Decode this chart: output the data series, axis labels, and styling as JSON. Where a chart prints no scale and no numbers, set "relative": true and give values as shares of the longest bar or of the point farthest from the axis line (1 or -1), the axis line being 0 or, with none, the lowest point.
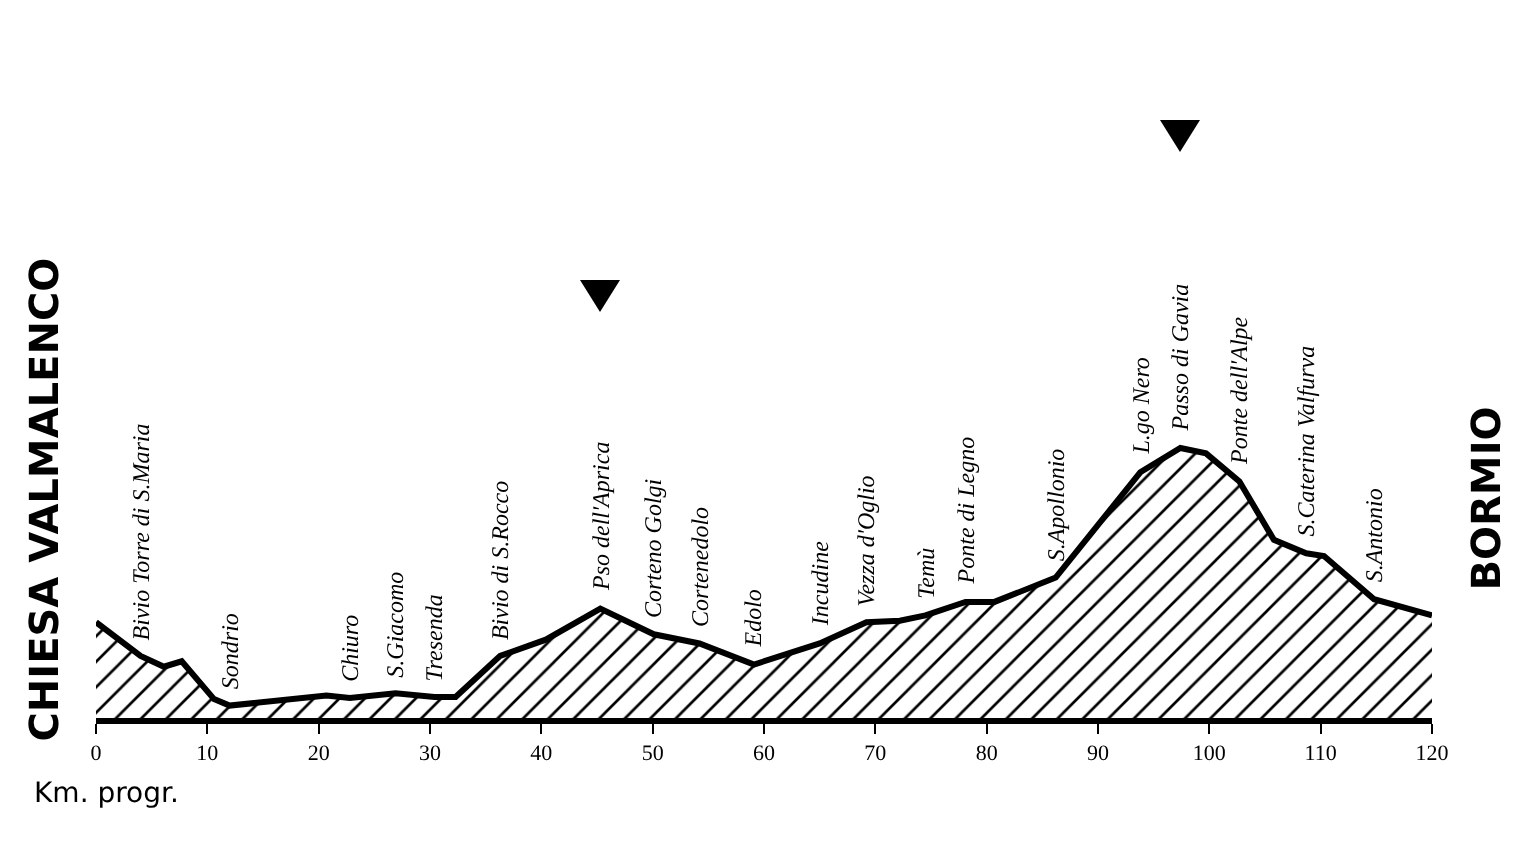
{
  "chart_data": {
    "type": "area",
    "relative": true,
    "xlabel": "Km. progr.",
    "x": [
      0,
      4.0,
      6.1,
      7.7,
      10.6,
      12.0,
      20.7,
      22.8,
      26.9,
      30.4,
      32.3,
      36.3,
      40.4,
      45.3,
      50.1,
      54.2,
      59.1,
      65.0,
      69.2,
      72.2,
      74.5,
      78.1,
      80.7,
      86.2,
      93.8,
      97.4,
      99.7,
      102.7,
      105.8,
      108.7,
      110.3,
      114.8,
      120
    ],
    "series": [
      {
        "color": "#000000",
        "values": [
          0.355,
          0.23,
          0.19,
          0.21,
          0.07,
          0.046,
          0.083,
          0.074,
          0.092,
          0.078,
          0.078,
          0.23,
          0.29,
          0.405,
          0.31,
          0.276,
          0.198,
          0.276,
          0.355,
          0.36,
          0.38,
          0.43,
          0.43,
          0.52,
          0.91,
          1,
          0.98,
          0.876,
          0.66,
          0.61,
          0.6,
          0.44,
          0.38
        ]
      }
    ],
    "xlim": [
      0,
      120
    ],
    "xticks": [
      0,
      10,
      20,
      30,
      40,
      50,
      60,
      70,
      80,
      90,
      100,
      110,
      120
    ],
    "annotations": [
      "CHIESA VALMALENCO",
      "BORMIO",
      {
        "text": "Bivio Torre di S.Maria",
        "x": 4.0,
        "y": 0.23
      },
      {
        "text": "Sondrio",
        "x": 12.0,
        "y": 0.046
      },
      {
        "text": "Chiuro",
        "x": 22.8,
        "y": 0.074
      },
      {
        "text": "S.Giacomo",
        "x": 26.9,
        "y": 0.092
      },
      {
        "text": "Tresenda",
        "x": 30.4,
        "y": 0.078
      },
      {
        "text": "Bivio di S.Rocco",
        "x": 36.3,
        "y": 0.23
      },
      {
        "text": "Pso dell'Aprica",
        "x": 45.3,
        "y": 0.405
      },
      {
        "text": "Corteno Golgi",
        "x": 50.1,
        "y": 0.31
      },
      {
        "text": "Cortenedolo",
        "x": 54.2,
        "y": 0.276
      },
      {
        "text": "Edolo",
        "x": 59.1,
        "y": 0.198
      },
      {
        "text": "Incudine",
        "x": 65.0,
        "y": 0.276
      },
      {
        "text": "Vezza d'Oglio",
        "x": 69.2,
        "y": 0.355
      },
      {
        "text": "Temù",
        "x": 74.5,
        "y": 0.38
      },
      {
        "text": "Ponte di Legno",
        "x": 78.1,
        "y": 0.43
      },
      {
        "text": "S.Apollonio",
        "x": 86.2,
        "y": 0.52
      },
      {
        "text": "L.go Nero",
        "x": 93.8,
        "y": 0.91
      },
      {
        "text": "Passo di Gavia",
        "x": 97.4,
        "y": 1
      },
      {
        "text": "Ponte dell'Alpe",
        "x": 102.7,
        "y": 0.876
      },
      {
        "text": "S.Caterina Valfurva",
        "x": 108.7,
        "y": 0.61
      },
      {
        "text": "S.Antonio",
        "x": 114.8,
        "y": 0.44
      }
    ]
  }
}
